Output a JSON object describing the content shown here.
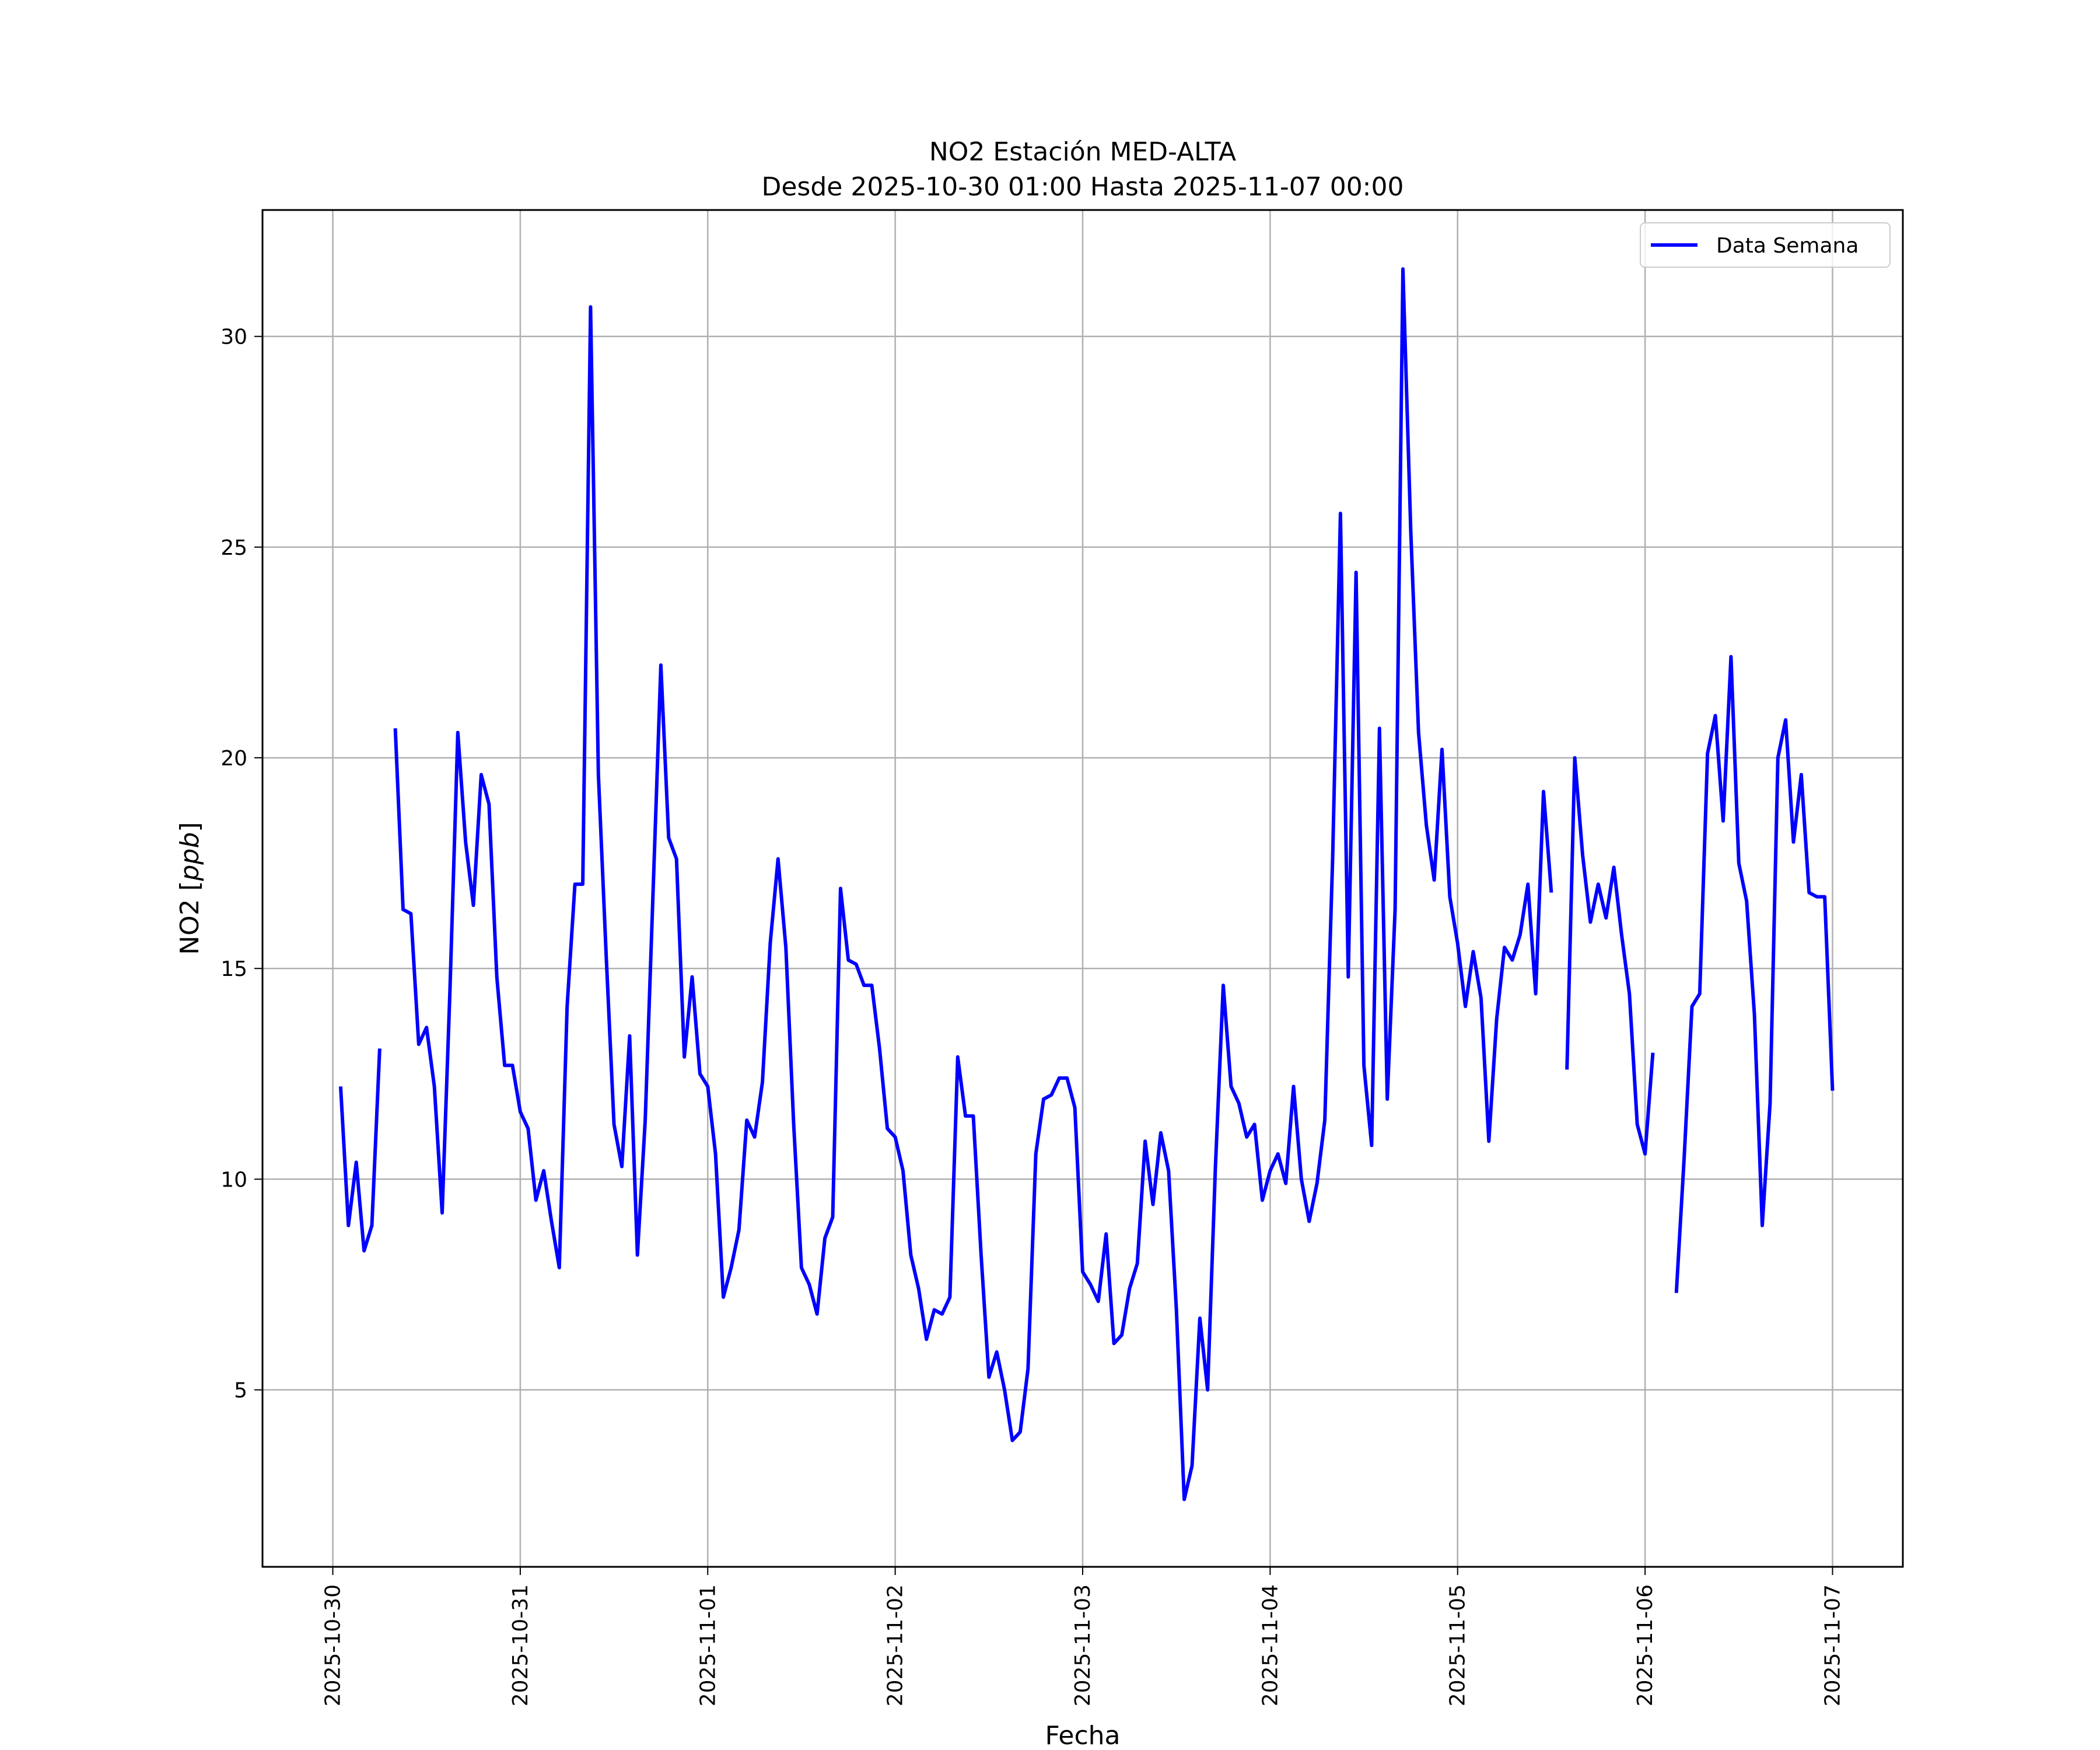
{
  "chart_data": {
    "type": "line",
    "title": "NO2 Estación MED-ALTA",
    "subtitle": "Desde 2025-10-30 01:00 Hasta 2025-11-07 00:00",
    "xlabel": "Fecha",
    "ylabel": "NO2 [ppb]",
    "ylabel_parts": {
      "prefix": "NO2 [",
      "unit": "ppb",
      "suffix": "]"
    },
    "x_start": "2025-10-30 01:00",
    "x_end": "2025-11-07 00:00",
    "xlim": [
      "2025-10-29 15:00",
      "2025-11-07 09:00"
    ],
    "ylim": [
      0.8,
      33.0
    ],
    "x_ticks": [
      "2025-10-30",
      "2025-10-31",
      "2025-11-01",
      "2025-11-02",
      "2025-11-03",
      "2025-11-04",
      "2025-11-05",
      "2025-11-06",
      "2025-11-07"
    ],
    "y_ticks": [
      "5",
      "10",
      "15",
      "20",
      "25",
      "30"
    ],
    "grid": true,
    "legend_position": "upper right",
    "series": [
      {
        "name": "Data Semana",
        "color": "#0000ff",
        "points": [
          [
            "2025-10-30 01:00",
            12.2
          ],
          [
            "2025-10-30 02:00",
            8.9
          ],
          [
            "2025-10-30 03:00",
            10.4
          ],
          [
            "2025-10-30 04:00",
            8.3
          ],
          [
            "2025-10-30 05:00",
            8.9
          ],
          [
            "2025-10-30 06:00",
            13.1
          ],
          [
            "2025-10-30 07:00",
            null
          ],
          [
            "2025-10-30 08:00",
            20.7
          ],
          [
            "2025-10-30 09:00",
            16.4
          ],
          [
            "2025-10-30 10:00",
            16.3
          ],
          [
            "2025-10-30 11:00",
            13.2
          ],
          [
            "2025-10-30 12:00",
            13.6
          ],
          [
            "2025-10-30 13:00",
            12.2
          ],
          [
            "2025-10-30 14:00",
            9.2
          ],
          [
            "2025-10-30 15:00",
            14.5
          ],
          [
            "2025-10-30 16:00",
            20.6
          ],
          [
            "2025-10-30 17:00",
            18.0
          ],
          [
            "2025-10-30 18:00",
            16.5
          ],
          [
            "2025-10-30 19:00",
            19.6
          ],
          [
            "2025-10-30 20:00",
            18.9
          ],
          [
            "2025-10-30 21:00",
            14.8
          ],
          [
            "2025-10-30 22:00",
            12.7
          ],
          [
            "2025-10-30 23:00",
            12.7
          ],
          [
            "2025-10-31 00:00",
            11.6
          ],
          [
            "2025-10-31 01:00",
            11.2
          ],
          [
            "2025-10-31 02:00",
            9.5
          ],
          [
            "2025-10-31 03:00",
            10.2
          ],
          [
            "2025-10-31 04:00",
            9.0
          ],
          [
            "2025-10-31 05:00",
            7.9
          ],
          [
            "2025-10-31 06:00",
            14.1
          ],
          [
            "2025-10-31 07:00",
            17.0
          ],
          [
            "2025-10-31 08:00",
            17.0
          ],
          [
            "2025-10-31 09:00",
            30.7
          ],
          [
            "2025-10-31 10:00",
            19.6
          ],
          [
            "2025-10-31 11:00",
            15.3
          ],
          [
            "2025-10-31 12:00",
            11.3
          ],
          [
            "2025-10-31 13:00",
            10.3
          ],
          [
            "2025-10-31 14:00",
            13.4
          ],
          [
            "2025-10-31 15:00",
            8.2
          ],
          [
            "2025-10-31 16:00",
            11.4
          ],
          [
            "2025-10-31 17:00",
            16.8
          ],
          [
            "2025-10-31 18:00",
            22.2
          ],
          [
            "2025-10-31 19:00",
            18.1
          ],
          [
            "2025-10-31 20:00",
            17.6
          ],
          [
            "2025-10-31 21:00",
            12.9
          ],
          [
            "2025-10-31 22:00",
            14.8
          ],
          [
            "2025-10-31 23:00",
            12.5
          ],
          [
            "2025-11-01 00:00",
            12.2
          ],
          [
            "2025-11-01 01:00",
            10.6
          ],
          [
            "2025-11-01 02:00",
            7.2
          ],
          [
            "2025-11-01 03:00",
            7.9
          ],
          [
            "2025-11-01 04:00",
            8.8
          ],
          [
            "2025-11-01 05:00",
            11.4
          ],
          [
            "2025-11-01 06:00",
            11.0
          ],
          [
            "2025-11-01 07:00",
            12.3
          ],
          [
            "2025-11-01 08:00",
            15.6
          ],
          [
            "2025-11-01 09:00",
            17.6
          ],
          [
            "2025-11-01 10:00",
            15.5
          ],
          [
            "2025-11-01 11:00",
            11.3
          ],
          [
            "2025-11-01 12:00",
            7.9
          ],
          [
            "2025-11-01 13:00",
            7.5
          ],
          [
            "2025-11-01 14:00",
            6.8
          ],
          [
            "2025-11-01 15:00",
            8.6
          ],
          [
            "2025-11-01 16:00",
            9.1
          ],
          [
            "2025-11-01 17:00",
            16.9
          ],
          [
            "2025-11-01 18:00",
            15.2
          ],
          [
            "2025-11-01 19:00",
            15.1
          ],
          [
            "2025-11-01 20:00",
            14.6
          ],
          [
            "2025-11-01 21:00",
            14.6
          ],
          [
            "2025-11-01 22:00",
            13.1
          ],
          [
            "2025-11-01 23:00",
            11.2
          ],
          [
            "2025-11-02 00:00",
            11.0
          ],
          [
            "2025-11-02 01:00",
            10.2
          ],
          [
            "2025-11-02 02:00",
            8.2
          ],
          [
            "2025-11-02 03:00",
            7.4
          ],
          [
            "2025-11-02 04:00",
            6.2
          ],
          [
            "2025-11-02 05:00",
            6.9
          ],
          [
            "2025-11-02 06:00",
            6.8
          ],
          [
            "2025-11-02 07:00",
            7.2
          ],
          [
            "2025-11-02 08:00",
            12.9
          ],
          [
            "2025-11-02 09:00",
            11.5
          ],
          [
            "2025-11-02 10:00",
            11.5
          ],
          [
            "2025-11-02 11:00",
            8.2
          ],
          [
            "2025-11-02 12:00",
            5.3
          ],
          [
            "2025-11-02 13:00",
            5.9
          ],
          [
            "2025-11-02 14:00",
            5.0
          ],
          [
            "2025-11-02 15:00",
            3.8
          ],
          [
            "2025-11-02 16:00",
            4.0
          ],
          [
            "2025-11-02 17:00",
            5.5
          ],
          [
            "2025-11-02 18:00",
            10.6
          ],
          [
            "2025-11-02 19:00",
            11.9
          ],
          [
            "2025-11-02 20:00",
            12.0
          ],
          [
            "2025-11-02 21:00",
            12.4
          ],
          [
            "2025-11-02 22:00",
            12.4
          ],
          [
            "2025-11-02 23:00",
            11.7
          ],
          [
            "2025-11-03 00:00",
            7.8
          ],
          [
            "2025-11-03 01:00",
            7.5
          ],
          [
            "2025-11-03 02:00",
            7.1
          ],
          [
            "2025-11-03 03:00",
            8.7
          ],
          [
            "2025-11-03 04:00",
            6.1
          ],
          [
            "2025-11-03 05:00",
            6.3
          ],
          [
            "2025-11-03 06:00",
            7.4
          ],
          [
            "2025-11-03 07:00",
            8.0
          ],
          [
            "2025-11-03 08:00",
            10.9
          ],
          [
            "2025-11-03 09:00",
            9.4
          ],
          [
            "2025-11-03 10:00",
            11.1
          ],
          [
            "2025-11-03 11:00",
            10.2
          ],
          [
            "2025-11-03 12:00",
            6.9
          ],
          [
            "2025-11-03 13:00",
            2.4
          ],
          [
            "2025-11-03 14:00",
            3.2
          ],
          [
            "2025-11-03 15:00",
            6.7
          ],
          [
            "2025-11-03 16:00",
            5.0
          ],
          [
            "2025-11-03 17:00",
            10.3
          ],
          [
            "2025-11-03 18:00",
            14.6
          ],
          [
            "2025-11-03 19:00",
            12.2
          ],
          [
            "2025-11-03 20:00",
            11.8
          ],
          [
            "2025-11-03 21:00",
            11.0
          ],
          [
            "2025-11-03 22:00",
            11.3
          ],
          [
            "2025-11-03 23:00",
            9.5
          ],
          [
            "2025-11-04 00:00",
            10.2
          ],
          [
            "2025-11-04 01:00",
            10.6
          ],
          [
            "2025-11-04 02:00",
            9.9
          ],
          [
            "2025-11-04 03:00",
            12.2
          ],
          [
            "2025-11-04 04:00",
            10.0
          ],
          [
            "2025-11-04 05:00",
            9.0
          ],
          [
            "2025-11-04 06:00",
            9.9
          ],
          [
            "2025-11-04 07:00",
            11.4
          ],
          [
            "2025-11-04 08:00",
            17.6
          ],
          [
            "2025-11-04 09:00",
            25.8
          ],
          [
            "2025-11-04 10:00",
            14.8
          ],
          [
            "2025-11-04 11:00",
            24.4
          ],
          [
            "2025-11-04 12:00",
            12.7
          ],
          [
            "2025-11-04 13:00",
            10.8
          ],
          [
            "2025-11-04 14:00",
            20.7
          ],
          [
            "2025-11-04 15:00",
            11.9
          ],
          [
            "2025-11-04 16:00",
            16.4
          ],
          [
            "2025-11-04 17:00",
            31.6
          ],
          [
            "2025-11-04 18:00",
            25.4
          ],
          [
            "2025-11-04 19:00",
            20.6
          ],
          [
            "2025-11-04 20:00",
            18.4
          ],
          [
            "2025-11-04 21:00",
            17.1
          ],
          [
            "2025-11-04 22:00",
            20.2
          ],
          [
            "2025-11-04 23:00",
            16.7
          ],
          [
            "2025-11-05 00:00",
            15.6
          ],
          [
            "2025-11-05 01:00",
            14.1
          ],
          [
            "2025-11-05 02:00",
            15.4
          ],
          [
            "2025-11-05 03:00",
            14.3
          ],
          [
            "2025-11-05 04:00",
            10.9
          ],
          [
            "2025-11-05 05:00",
            13.8
          ],
          [
            "2025-11-05 06:00",
            15.5
          ],
          [
            "2025-11-05 07:00",
            15.2
          ],
          [
            "2025-11-05 08:00",
            15.8
          ],
          [
            "2025-11-05 09:00",
            17.0
          ],
          [
            "2025-11-05 10:00",
            14.4
          ],
          [
            "2025-11-05 11:00",
            19.2
          ],
          [
            "2025-11-05 12:00",
            16.8
          ],
          [
            "2025-11-05 13:00",
            null
          ],
          [
            "2025-11-05 14:00",
            12.6
          ],
          [
            "2025-11-05 15:00",
            20.0
          ],
          [
            "2025-11-05 16:00",
            17.7
          ],
          [
            "2025-11-05 17:00",
            16.1
          ],
          [
            "2025-11-05 18:00",
            17.0
          ],
          [
            "2025-11-05 19:00",
            16.2
          ],
          [
            "2025-11-05 20:00",
            17.4
          ],
          [
            "2025-11-05 21:00",
            15.8
          ],
          [
            "2025-11-05 22:00",
            14.4
          ],
          [
            "2025-11-05 23:00",
            11.3
          ],
          [
            "2025-11-06 00:00",
            10.6
          ],
          [
            "2025-11-06 01:00",
            13.0
          ],
          [
            "2025-11-06 02:00",
            null
          ],
          [
            "2025-11-06 03:00",
            null
          ],
          [
            "2025-11-06 04:00",
            7.3
          ],
          [
            "2025-11-06 05:00",
            10.5
          ],
          [
            "2025-11-06 06:00",
            14.1
          ],
          [
            "2025-11-06 07:00",
            14.4
          ],
          [
            "2025-11-06 08:00",
            20.1
          ],
          [
            "2025-11-06 09:00",
            21.0
          ],
          [
            "2025-11-06 10:00",
            18.5
          ],
          [
            "2025-11-06 11:00",
            22.4
          ],
          [
            "2025-11-06 12:00",
            17.5
          ],
          [
            "2025-11-06 13:00",
            16.6
          ],
          [
            "2025-11-06 14:00",
            13.9
          ],
          [
            "2025-11-06 15:00",
            8.9
          ],
          [
            "2025-11-06 16:00",
            11.8
          ],
          [
            "2025-11-06 17:00",
            20.0
          ],
          [
            "2025-11-06 18:00",
            20.9
          ],
          [
            "2025-11-06 19:00",
            18.0
          ],
          [
            "2025-11-06 20:00",
            19.6
          ],
          [
            "2025-11-06 21:00",
            16.8
          ],
          [
            "2025-11-06 22:00",
            16.7
          ],
          [
            "2025-11-06 23:00",
            16.7
          ],
          [
            "2025-11-07 00:00",
            12.1
          ]
        ]
      }
    ]
  }
}
